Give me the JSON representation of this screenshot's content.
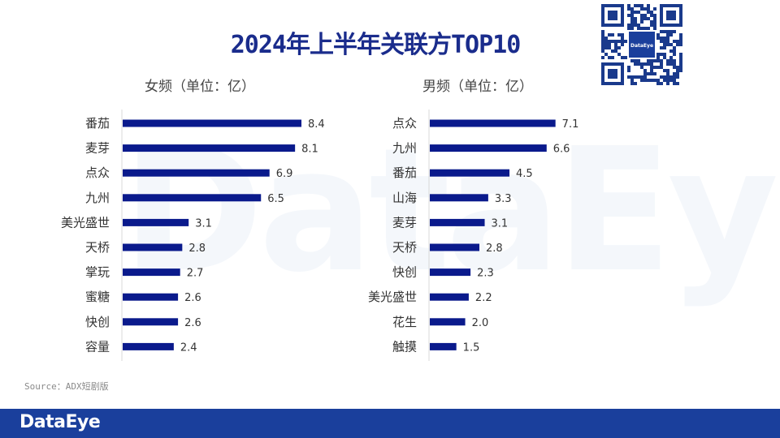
{
  "title": "2024年上半年关联方TOP10",
  "watermark": "DataEye",
  "source": "Source：ADX短剧版",
  "footer": {
    "logo": "DataEye"
  },
  "qr": {
    "center_label": "DataEye"
  },
  "colors": {
    "bar": "#0a1a8c",
    "title": "#1a2c8c",
    "footer": "#1a3f9c"
  },
  "chart_data": [
    {
      "type": "bar",
      "orientation": "horizontal",
      "title": "女频（单位：亿）",
      "categories": [
        "番茄",
        "麦芽",
        "点众",
        "九州",
        "美光盛世",
        "天桥",
        "掌玩",
        "蜜糖",
        "快创",
        "容量"
      ],
      "values": [
        8.4,
        8.1,
        6.9,
        6.5,
        3.1,
        2.8,
        2.7,
        2.6,
        2.6,
        2.4
      ],
      "value_labels": [
        "8.4",
        "8.1",
        "6.9",
        "6.5",
        "3.1",
        "2.8",
        "2.7",
        "2.6",
        "2.6",
        "2.4"
      ],
      "xlim": [
        0,
        8.4
      ]
    },
    {
      "type": "bar",
      "orientation": "horizontal",
      "title": "男频（单位：亿）",
      "categories": [
        "点众",
        "九州",
        "番茄",
        "山海",
        "麦芽",
        "天桥",
        "快创",
        "美光盛世",
        "花生",
        "触摸"
      ],
      "values": [
        7.1,
        6.6,
        4.5,
        3.3,
        3.1,
        2.8,
        2.3,
        2.2,
        2.0,
        1.5
      ],
      "value_labels": [
        "7.1",
        "6.6",
        "4.5",
        "3.3",
        "3.1",
        "2.8",
        "2.3",
        "2.2",
        "2.0",
        "1.5"
      ],
      "xlim": [
        0,
        8.4
      ]
    }
  ]
}
